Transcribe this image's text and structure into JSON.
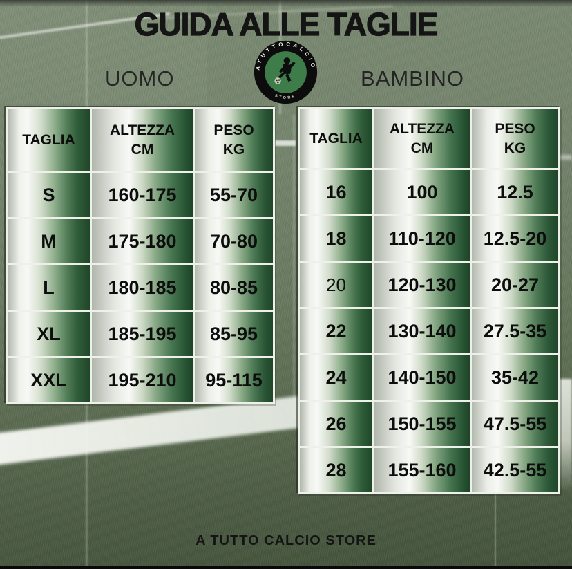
{
  "page": {
    "title": "GUIDA ALLE TAGLIE",
    "footer": "A TUTTO CALCIO STORE"
  },
  "sections": [
    {
      "id": "uomo",
      "label": "UOMO"
    },
    {
      "id": "bambino",
      "label": "BAMBINO"
    }
  ],
  "logo": {
    "arc_text": "ATUTTOCALCIO",
    "bottom_text": "STORE",
    "ring_color": "#0c0c0c",
    "inner_color": "#3e7c4a",
    "text_color": "#f2efe4"
  },
  "tables": [
    {
      "section": "UOMO",
      "headers": [
        [
          "TAGLIA"
        ],
        [
          "ALTEZZA",
          "CM"
        ],
        [
          "PESO",
          "KG"
        ]
      ],
      "rows": [
        [
          "S",
          "160-175",
          "55-70"
        ],
        [
          "M",
          "175-180",
          "70-80"
        ],
        [
          "L",
          "180-185",
          "80-85"
        ],
        [
          "XL",
          "185-195",
          "85-95"
        ],
        [
          "XXL",
          "195-210",
          "95-115"
        ]
      ],
      "regular_weight_rows": []
    },
    {
      "section": "BAMBINO",
      "headers": [
        [
          "TAGLIA"
        ],
        [
          "ALTEZZA",
          "CM"
        ],
        [
          "PESO",
          "KG"
        ]
      ],
      "rows": [
        [
          "16",
          "100",
          "12.5"
        ],
        [
          "18",
          "110-120",
          "12.5-20"
        ],
        [
          "20",
          "120-130",
          "20-27"
        ],
        [
          "22",
          "130-140",
          "27.5-35"
        ],
        [
          "24",
          "140-150",
          "35-42"
        ],
        [
          "26",
          "150-155",
          "47.5-55"
        ],
        [
          "28",
          "155-160",
          "42.5-55"
        ]
      ],
      "regular_weight_rows": [
        2
      ]
    }
  ],
  "colors": {
    "cell_dark_green": "#1f4628",
    "cell_light": "#f8f9f6",
    "grass_light": "#7b8a73",
    "grass_dark": "#43523b",
    "text": "#141414"
  }
}
